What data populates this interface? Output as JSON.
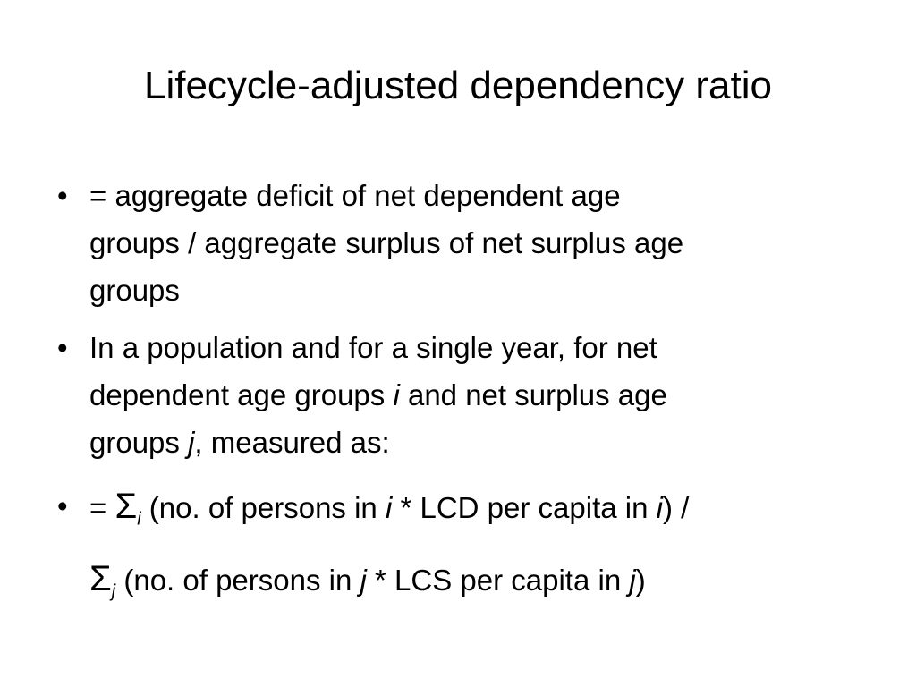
{
  "slide": {
    "title": "Lifecycle-adjusted dependency ratio",
    "bullet_symbol": "•",
    "bullet1": {
      "line1": "= aggregate deficit of net dependent age",
      "line2": "groups / aggregate surplus of net surplus age",
      "line3": "groups"
    },
    "bullet2": {
      "line1": "In a population and for a single year, for net",
      "line2_a": "dependent age groups ",
      "var_i": "i",
      "line2_b": " and net surplus age",
      "line3_a": "groups ",
      "var_j": "j",
      "line3_b": ", measured as:"
    },
    "bullet3": {
      "eq": "= ",
      "sigma": "Σ",
      "sub_i": "i",
      "part1": " (no. of persons in ",
      "var_i": "i",
      "part2": " * LCD per capita in ",
      "var_i2": "i",
      "part3": ") /",
      "sigma2": "Σ",
      "sub_j": "j",
      "part4": " (no. of persons in ",
      "var_j": "j",
      "part5": " * LCS per capita in ",
      "var_j2": "j",
      "part6": ")"
    }
  }
}
